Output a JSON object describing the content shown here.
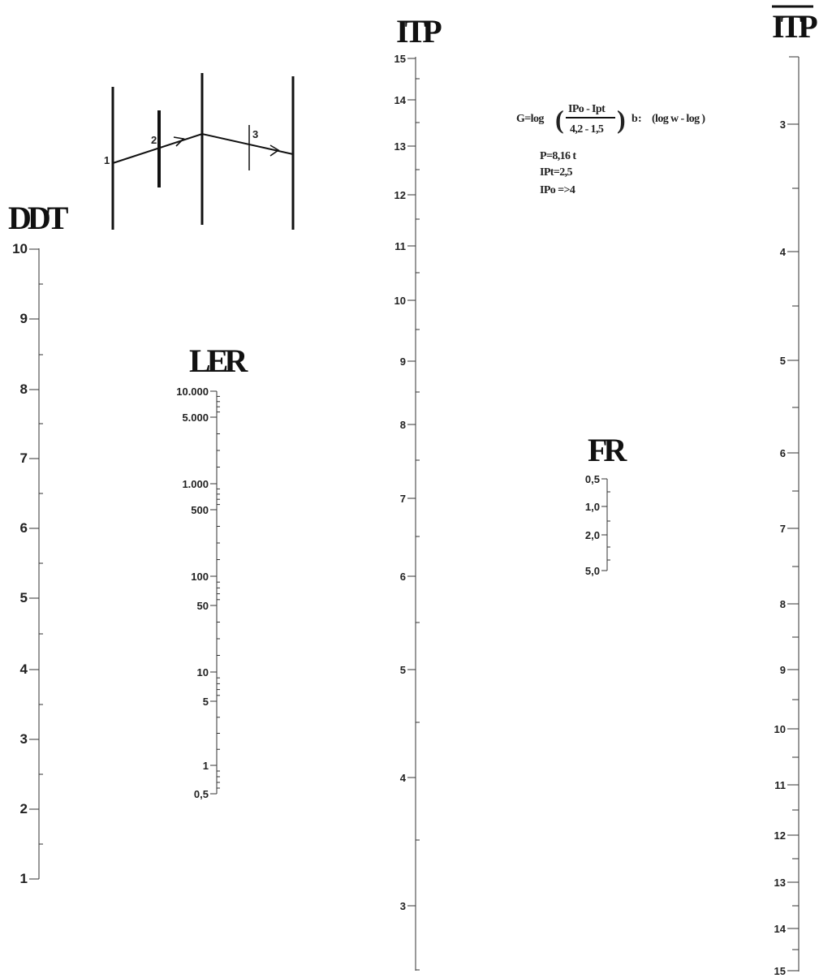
{
  "scales": {
    "ddt": {
      "title": "DDT",
      "labels": [
        "10",
        "9",
        "8",
        "7",
        "6",
        "5",
        "4",
        "3",
        "2",
        "1"
      ]
    },
    "ler": {
      "title": "LER",
      "labels": [
        "10.000",
        "5.000",
        "1.000",
        "500",
        "100",
        "50",
        "10",
        "5",
        "1",
        "0,5"
      ]
    },
    "itp": {
      "title": "ITP",
      "labels": [
        "15",
        "14",
        "13",
        "12",
        "11",
        "10",
        "9",
        "8",
        "7",
        "6",
        "5",
        "4",
        "3"
      ]
    },
    "fr": {
      "title": "FR",
      "labels": [
        "0,5",
        "1,0",
        "2,0",
        "5,0"
      ]
    },
    "itp_bar": {
      "title": "ITP",
      "labels": [
        "3",
        "4",
        "5",
        "6",
        "7",
        "8",
        "9",
        "10",
        "11",
        "12",
        "13",
        "14",
        "15"
      ]
    }
  },
  "key": {
    "lines": [
      "1",
      "2",
      "3"
    ]
  },
  "formula": {
    "lhs": "G=log",
    "numerator": "IPo - Ipt",
    "denominator": "4,2 - 1,5",
    "rhs_b": "b",
    "rhs_tail": "(log w - log )",
    "params": [
      "P=8,16 t",
      "IPt=2,5",
      "IPo =>4"
    ]
  }
}
